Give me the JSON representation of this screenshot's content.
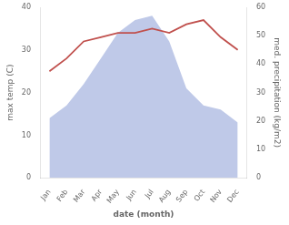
{
  "chart_data": {
    "type": "line",
    "categories": [
      "Jan",
      "Feb",
      "Mar",
      "Apr",
      "May",
      "Jun",
      "Jul",
      "Aug",
      "Sep",
      "Oct",
      "Nov",
      "Dec"
    ],
    "xlabel": "date (month)",
    "ylabel": "max temp (C)",
    "y2label": "med. precipitation (kg/m2)",
    "ylim": [
      0,
      40
    ],
    "yticks": [
      0,
      10,
      20,
      30,
      40
    ],
    "y2lim": [
      0,
      60
    ],
    "y2ticks": [
      0,
      10,
      20,
      30,
      40,
      50,
      60
    ],
    "grid": false,
    "series": [
      {
        "type": "area",
        "color": "#bfc9e8",
        "values": [
          14,
          17,
          22,
          28,
          34,
          37,
          38,
          32,
          21,
          17,
          16,
          13
        ]
      },
      {
        "type": "line",
        "color": "#c0504d",
        "values": [
          25,
          28,
          32,
          33,
          34,
          34,
          35,
          34,
          36,
          37,
          33,
          30
        ]
      }
    ]
  }
}
